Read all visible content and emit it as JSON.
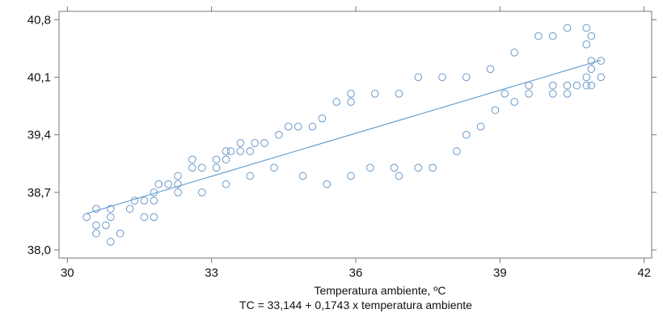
{
  "chart_data": {
    "type": "scatter",
    "title": "",
    "xlabel": "Temperatura ambiente, ºC",
    "subtitle": "TC = 33,144 + 0,1743 x temperatura ambiente",
    "ylabel": "",
    "xlim": [
      30,
      42
    ],
    "ylim": [
      38.0,
      40.8
    ],
    "x_ticks": [
      30,
      33,
      36,
      39,
      42
    ],
    "x_tick_labels": [
      "30",
      "33",
      "36",
      "39",
      "42"
    ],
    "y_ticks": [
      38.0,
      38.7,
      39.4,
      40.1,
      40.8
    ],
    "y_tick_labels": [
      "38,0",
      "38,7",
      "39,4",
      "40,1",
      "40,8"
    ],
    "grid": false,
    "regression": {
      "intercept": 33.144,
      "slope": 0.1743,
      "x_range": [
        30.4,
        41.1
      ]
    },
    "colors": {
      "points": "#6a98c8",
      "line": "#4f93c9",
      "axis": "#777777"
    },
    "points": [
      [
        30.4,
        38.4
      ],
      [
        30.6,
        38.5
      ],
      [
        30.6,
        38.3
      ],
      [
        30.6,
        38.2
      ],
      [
        30.8,
        38.3
      ],
      [
        30.9,
        38.5
      ],
      [
        30.9,
        38.4
      ],
      [
        30.9,
        38.1
      ],
      [
        31.1,
        38.2
      ],
      [
        31.3,
        38.5
      ],
      [
        31.4,
        38.6
      ],
      [
        31.6,
        38.6
      ],
      [
        31.6,
        38.4
      ],
      [
        31.8,
        38.6
      ],
      [
        31.8,
        38.7
      ],
      [
        31.8,
        38.4
      ],
      [
        31.9,
        38.8
      ],
      [
        32.1,
        38.8
      ],
      [
        32.3,
        38.9
      ],
      [
        32.3,
        38.8
      ],
      [
        32.3,
        38.7
      ],
      [
        32.6,
        39.1
      ],
      [
        32.6,
        39.0
      ],
      [
        32.8,
        39.0
      ],
      [
        32.8,
        38.7
      ],
      [
        33.1,
        39.1
      ],
      [
        33.1,
        39.0
      ],
      [
        33.3,
        39.2
      ],
      [
        33.3,
        39.1
      ],
      [
        33.3,
        38.8
      ],
      [
        33.4,
        39.2
      ],
      [
        33.6,
        39.3
      ],
      [
        33.6,
        39.2
      ],
      [
        33.8,
        39.2
      ],
      [
        33.8,
        38.9
      ],
      [
        33.9,
        39.3
      ],
      [
        34.1,
        39.3
      ],
      [
        34.3,
        39.0
      ],
      [
        34.4,
        39.4
      ],
      [
        34.6,
        39.5
      ],
      [
        34.8,
        39.5
      ],
      [
        34.9,
        38.9
      ],
      [
        35.1,
        39.5
      ],
      [
        35.3,
        39.6
      ],
      [
        35.4,
        38.8
      ],
      [
        35.6,
        39.8
      ],
      [
        35.9,
        39.9
      ],
      [
        35.9,
        39.8
      ],
      [
        35.9,
        38.9
      ],
      [
        36.3,
        39.0
      ],
      [
        36.4,
        39.9
      ],
      [
        36.8,
        39.0
      ],
      [
        36.9,
        39.9
      ],
      [
        36.9,
        38.9
      ],
      [
        37.3,
        40.1
      ],
      [
        37.3,
        39.0
      ],
      [
        37.6,
        39.0
      ],
      [
        37.8,
        40.1
      ],
      [
        38.1,
        39.2
      ],
      [
        38.3,
        40.1
      ],
      [
        38.3,
        39.4
      ],
      [
        38.6,
        39.5
      ],
      [
        38.8,
        40.2
      ],
      [
        38.9,
        39.7
      ],
      [
        39.1,
        39.9
      ],
      [
        39.3,
        40.4
      ],
      [
        39.3,
        39.8
      ],
      [
        39.6,
        40.0
      ],
      [
        39.6,
        39.9
      ],
      [
        39.8,
        40.6
      ],
      [
        40.1,
        40.6
      ],
      [
        40.1,
        40.0
      ],
      [
        40.1,
        39.9
      ],
      [
        40.4,
        40.7
      ],
      [
        40.4,
        40.0
      ],
      [
        40.4,
        39.9
      ],
      [
        40.6,
        40.0
      ],
      [
        40.8,
        40.7
      ],
      [
        40.8,
        40.5
      ],
      [
        40.8,
        40.1
      ],
      [
        40.8,
        40.0
      ],
      [
        40.9,
        40.6
      ],
      [
        40.9,
        40.3
      ],
      [
        40.9,
        40.2
      ],
      [
        40.9,
        40.0
      ],
      [
        41.1,
        40.3
      ],
      [
        41.1,
        40.1
      ]
    ]
  }
}
